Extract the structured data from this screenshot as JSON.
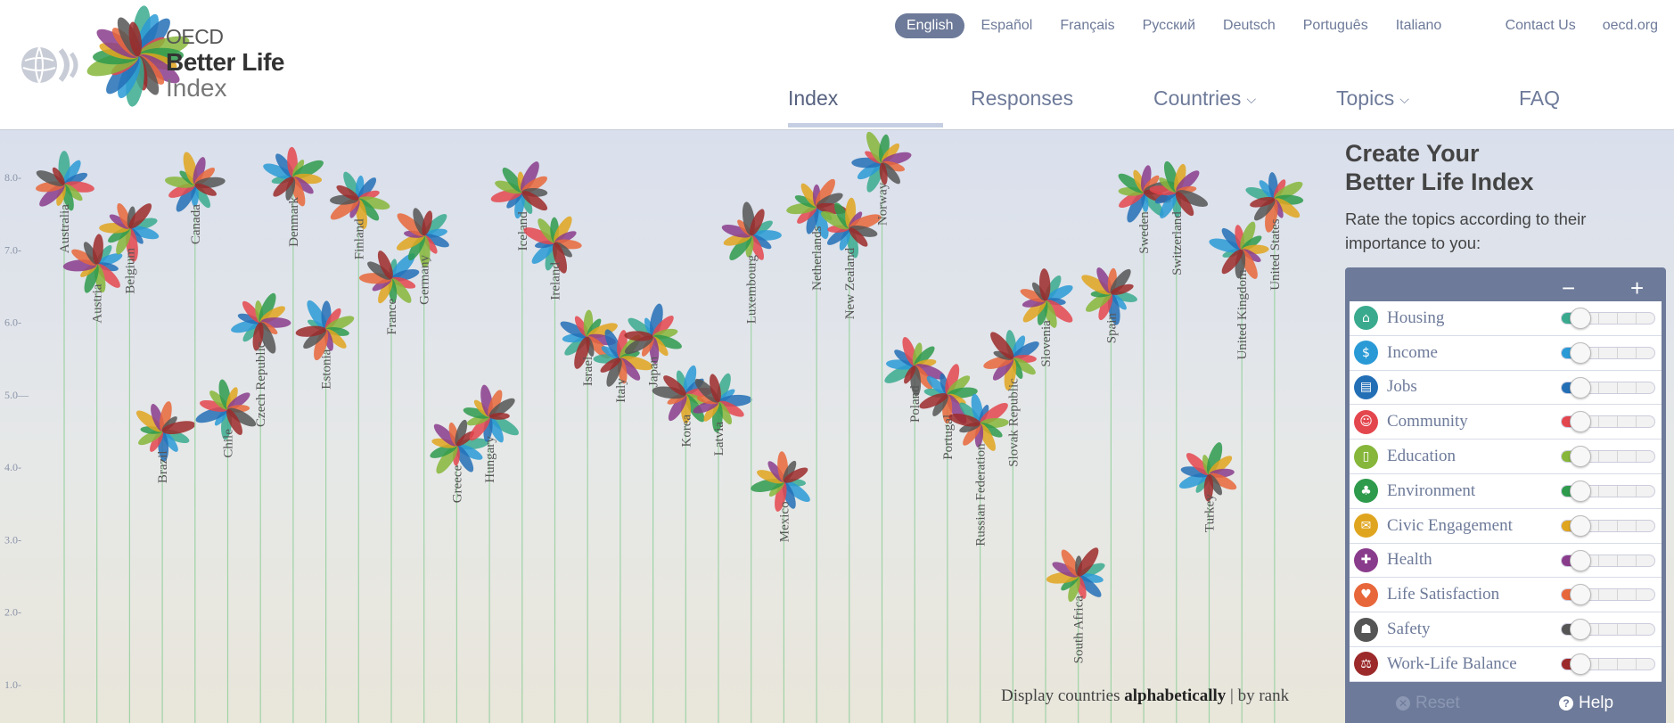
{
  "header": {
    "logo": {
      "line1": "OECD",
      "line2": "Better Life",
      "line3": "Index"
    },
    "languages": [
      "English",
      "Español",
      "Français",
      "Русский",
      "Deutsch",
      "Português",
      "Italiano"
    ],
    "active_language": "English",
    "top_links": [
      "Contact Us",
      "oecd.org"
    ],
    "nav": [
      {
        "label": "Index",
        "active": true,
        "dropdown": false
      },
      {
        "label": "Responses",
        "active": false,
        "dropdown": false
      },
      {
        "label": "Countries",
        "active": false,
        "dropdown": true
      },
      {
        "label": "Topics",
        "active": false,
        "dropdown": true
      },
      {
        "label": "FAQ",
        "active": false,
        "dropdown": false
      }
    ]
  },
  "panel": {
    "title_line1": "Create Your",
    "title_line2": "Better Life Index",
    "subtitle": "Rate the topics according to their importance to you:",
    "minus": "−",
    "plus": "+",
    "reset_label": "Reset",
    "help_label": "Help",
    "topics": [
      {
        "label": "Housing",
        "color": "#3aaa8e",
        "icon": "house-icon",
        "glyph": "⌂",
        "value": 1,
        "max": 5
      },
      {
        "label": "Income",
        "color": "#2a9ad6",
        "icon": "money-icon",
        "glyph": "$",
        "value": 1,
        "max": 5
      },
      {
        "label": "Jobs",
        "color": "#236fb6",
        "icon": "briefcase-icon",
        "glyph": "▤",
        "value": 1,
        "max": 5
      },
      {
        "label": "Community",
        "color": "#e4464e",
        "icon": "people-icon",
        "glyph": "☺",
        "value": 1,
        "max": 5
      },
      {
        "label": "Education",
        "color": "#86b63a",
        "icon": "book-icon",
        "glyph": "▯",
        "value": 1,
        "max": 5
      },
      {
        "label": "Environment",
        "color": "#2e9a4c",
        "icon": "tree-icon",
        "glyph": "♣",
        "value": 1,
        "max": 5
      },
      {
        "label": "Civic Engagement",
        "color": "#e0a51f",
        "icon": "ballot-icon",
        "glyph": "✉",
        "value": 1,
        "max": 5
      },
      {
        "label": "Health",
        "color": "#8a3c8c",
        "icon": "cross-icon",
        "glyph": "✚",
        "value": 1,
        "max": 5
      },
      {
        "label": "Life Satisfaction",
        "color": "#e8673a",
        "icon": "heart-icon",
        "glyph": "♥",
        "value": 1,
        "max": 5
      },
      {
        "label": "Safety",
        "color": "#555555",
        "icon": "person-icon",
        "glyph": "☗",
        "value": 1,
        "max": 5
      },
      {
        "label": "Work-Life Balance",
        "color": "#9c2a2a",
        "icon": "scales-icon",
        "glyph": "⚖",
        "value": 1,
        "max": 5
      }
    ]
  },
  "sort": {
    "prefix": "Display countries",
    "option1": "alphabetically",
    "separator": "|",
    "option2": "by rank"
  },
  "chart_data": {
    "type": "scatter",
    "y_ticks": [
      "8.0",
      "7.0",
      "6.0",
      "5.0",
      "4.0",
      "3.0",
      "2.0",
      "1.0"
    ],
    "ylim": [
      0.6,
      8.6
    ],
    "petal_colors": [
      "#3aaa8e",
      "#2a9ad6",
      "#236fb6",
      "#e4464e",
      "#86b63a",
      "#2e9a4c",
      "#e0a51f",
      "#8a3c8c",
      "#e8673a",
      "#555555",
      "#9c2a2a"
    ],
    "countries": [
      {
        "name": "Australia",
        "score": 7.9
      },
      {
        "name": "Austria",
        "score": 6.8
      },
      {
        "name": "Belgium",
        "score": 7.3
      },
      {
        "name": "Brazil",
        "score": 4.5
      },
      {
        "name": "Canada",
        "score": 7.9
      },
      {
        "name": "Chile",
        "score": 4.8
      },
      {
        "name": "Czech Republic",
        "score": 6.0
      },
      {
        "name": "Denmark",
        "score": 8.0
      },
      {
        "name": "Estonia",
        "score": 5.9
      },
      {
        "name": "Finland",
        "score": 7.7
      },
      {
        "name": "France",
        "score": 6.6
      },
      {
        "name": "Germany",
        "score": 7.2
      },
      {
        "name": "Greece",
        "score": 4.3
      },
      {
        "name": "Hungary",
        "score": 4.7
      },
      {
        "name": "Iceland",
        "score": 7.8
      },
      {
        "name": "Ireland",
        "score": 7.1
      },
      {
        "name": "Israel",
        "score": 5.8
      },
      {
        "name": "Italy",
        "score": 5.5
      },
      {
        "name": "Japan",
        "score": 5.8
      },
      {
        "name": "Korea",
        "score": 5.0
      },
      {
        "name": "Latvia",
        "score": 4.9
      },
      {
        "name": "Luxembourg",
        "score": 7.2
      },
      {
        "name": "Mexico",
        "score": 3.8
      },
      {
        "name": "Netherlands",
        "score": 7.6
      },
      {
        "name": "New Zealand",
        "score": 7.3
      },
      {
        "name": "Norway",
        "score": 8.2
      },
      {
        "name": "Poland",
        "score": 5.4
      },
      {
        "name": "Portugal",
        "score": 5.0
      },
      {
        "name": "Russian Federation",
        "score": 4.6
      },
      {
        "name": "Slovak Republic",
        "score": 5.5
      },
      {
        "name": "Slovenia",
        "score": 6.3
      },
      {
        "name": "South Africa",
        "score": 2.5
      },
      {
        "name": "Spain",
        "score": 6.4
      },
      {
        "name": "Sweden",
        "score": 7.8
      },
      {
        "name": "Switzerland",
        "score": 7.8
      },
      {
        "name": "Turkey",
        "score": 3.9
      },
      {
        "name": "United Kingdom",
        "score": 7.0
      },
      {
        "name": "United States",
        "score": 7.7
      }
    ]
  }
}
